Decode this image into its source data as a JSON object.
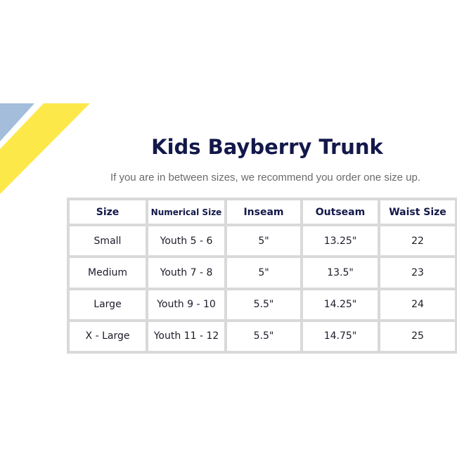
{
  "title": "Kids Bayberry Trunk",
  "subtitle": "If you are in between sizes, we recommend you order one size up.",
  "colors": {
    "title": "#13184a",
    "deco_blue": "#a3bddb",
    "deco_yellow": "#fde84a",
    "grid": "#d9d9d9"
  },
  "table": {
    "headers": [
      "Size",
      "Numerical Size",
      "Inseam",
      "Outseam",
      "Waist Size"
    ],
    "rows": [
      [
        "Small",
        "Youth 5 - 6",
        "5\"",
        "13.25\"",
        "22"
      ],
      [
        "Medium",
        "Youth 7 - 8",
        "5\"",
        "13.5\"",
        "23"
      ],
      [
        "Large",
        "Youth 9 - 10",
        "5.5\"",
        "14.25\"",
        "24"
      ],
      [
        "X - Large",
        "Youth 11 - 12",
        "5.5\"",
        "14.75\"",
        "25"
      ]
    ]
  }
}
